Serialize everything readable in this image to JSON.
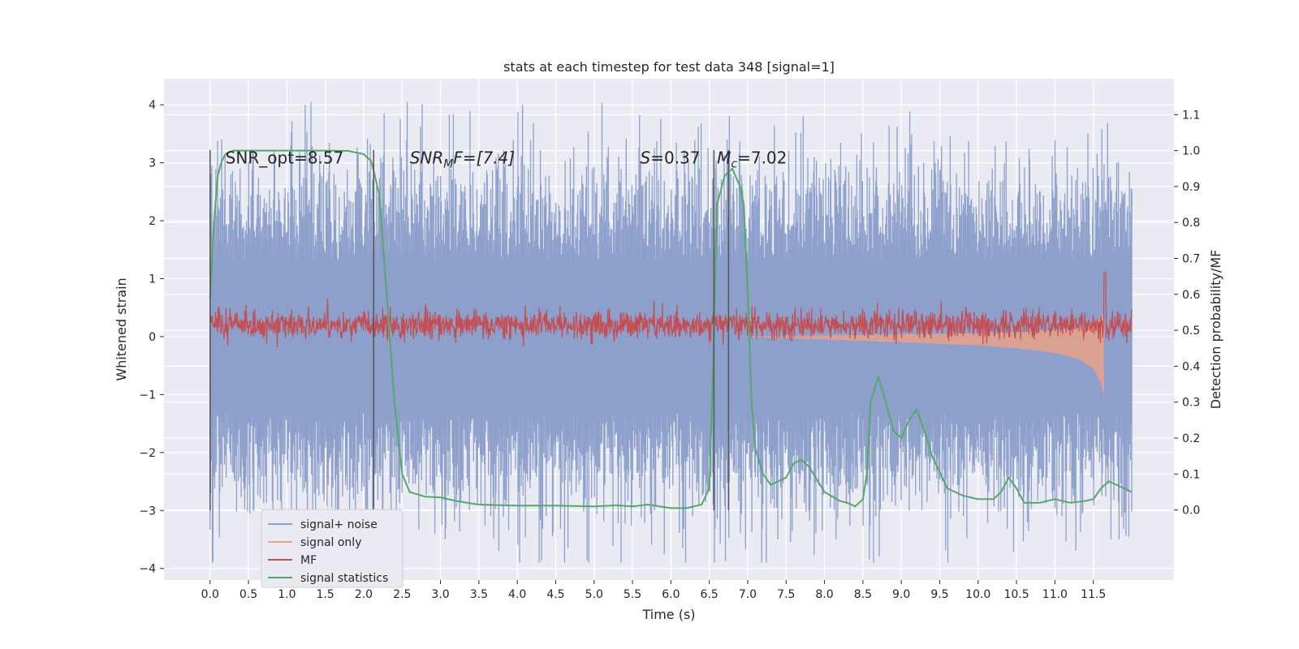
{
  "chart_data": {
    "type": "line",
    "title": "stats at each timestep for test data 348 [signal=1]",
    "xlabel": "Time (s)",
    "ylabel_left": "Whitened strain",
    "ylabel_right": "Detection probability/MF",
    "xlim": [
      -0.6,
      12.55
    ],
    "ylim_left": [
      -4.2,
      4.45
    ],
    "ylim_right": [
      -0.195,
      1.2
    ],
    "x_ticks": [
      "0.0",
      "0.5",
      "1.0",
      "1.5",
      "2.0",
      "2.5",
      "3.0",
      "3.5",
      "4.0",
      "4.5",
      "5.0",
      "5.5",
      "6.0",
      "6.5",
      "7.0",
      "7.5",
      "8.0",
      "8.5",
      "9.0",
      "9.5",
      "10.0",
      "10.5",
      "11.0",
      "11.5"
    ],
    "y_left_ticks": [
      "−4",
      "−3",
      "−2",
      "−1",
      "0",
      "1",
      "2",
      "3",
      "4"
    ],
    "y_right_ticks": [
      "0.0",
      "0.1",
      "0.2",
      "0.3",
      "0.4",
      "0.5",
      "0.6",
      "0.7",
      "0.8",
      "0.9",
      "1.0",
      "1.1"
    ],
    "grid": true,
    "legend": {
      "position": "lower-left",
      "entries": [
        {
          "label": "signal+ noise",
          "color": "#8da0cb"
        },
        {
          "label": "signal only",
          "color": "#e8a088"
        },
        {
          "label": "MF",
          "color": "#c44e52"
        },
        {
          "label": "signal statistics",
          "color": "#55a868"
        }
      ]
    },
    "annotations": [
      {
        "text": "SNR_opt=8.57",
        "x": 0.2,
        "y": 3.1
      },
      {
        "text": "SNR",
        "sub": "M",
        "suffix": "F=[7.4]",
        "italic": true,
        "x": 2.6,
        "y": 3.1
      },
      {
        "text": "S",
        "suffix": "=0.37",
        "italic": true,
        "x": 5.6,
        "y": 3.1
      },
      {
        "text": "M",
        "sub": "c",
        "suffix": "=7.02",
        "italic": true,
        "x": 6.6,
        "y": 3.1
      }
    ],
    "vlines": [
      {
        "x": 0.0,
        "ymin": -3.0,
        "ymax": 3.22
      },
      {
        "x": 2.13,
        "ymin": -3.0,
        "ymax": 3.22
      },
      {
        "x": 6.56,
        "ymin": -3.0,
        "ymax": 3.22
      },
      {
        "x": 6.75,
        "ymin": -3.0,
        "ymax": 3.22
      }
    ],
    "series": [
      {
        "name": "signal+ noise",
        "axis": "left",
        "color": "#8da0cb",
        "description_type": "noise_band",
        "x_range": [
          0.0,
          12.0
        ],
        "core_range": [
          -1.3,
          1.3
        ]
      },
      {
        "name": "signal only",
        "axis": "left",
        "color": "#e8a088",
        "description_type": "chirp",
        "envelope": {
          "x": [
            7.0,
            8.0,
            9.0,
            10.0,
            10.5,
            11.0,
            11.3,
            11.5,
            11.6,
            11.65
          ],
          "amp": [
            0.01,
            0.05,
            0.1,
            0.15,
            0.2,
            0.28,
            0.38,
            0.55,
            0.8,
            1.1
          ]
        }
      },
      {
        "name": "MF",
        "axis": "right",
        "color": "#c44e52",
        "description_type": "noise_band",
        "x_range": [
          0.0,
          12.0
        ],
        "center": 0.515,
        "spread": 0.02,
        "spike": {
          "x": 11.65,
          "y": 0.66
        }
      },
      {
        "name": "signal statistics",
        "axis": "right",
        "color": "#55a868",
        "x": [
          0.0,
          0.05,
          0.1,
          0.15,
          0.2,
          0.3,
          0.5,
          1.0,
          1.5,
          1.8,
          2.0,
          2.1,
          2.2,
          2.3,
          2.4,
          2.5,
          2.6,
          2.8,
          3.0,
          3.2,
          3.5,
          4.0,
          4.5,
          5.0,
          5.3,
          5.5,
          5.7,
          6.0,
          6.2,
          6.3,
          6.4,
          6.5,
          6.55,
          6.6,
          6.7,
          6.8,
          6.9,
          6.95,
          7.0,
          7.05,
          7.1,
          7.2,
          7.3,
          7.5,
          7.6,
          7.7,
          7.8,
          8.0,
          8.2,
          8.3,
          8.4,
          8.5,
          8.55,
          8.6,
          8.7,
          8.8,
          8.9,
          9.0,
          9.1,
          9.2,
          9.3,
          9.4,
          9.6,
          9.8,
          10.0,
          10.2,
          10.3,
          10.4,
          10.5,
          10.6,
          10.8,
          11.0,
          11.2,
          11.4,
          11.5,
          11.6,
          11.7,
          11.8,
          11.9,
          12.0
        ],
        "y": [
          0.59,
          0.8,
          0.93,
          0.97,
          0.99,
          1.0,
          1.0,
          1.0,
          1.0,
          0.999,
          0.99,
          0.97,
          0.88,
          0.6,
          0.3,
          0.1,
          0.05,
          0.037,
          0.035,
          0.025,
          0.015,
          0.012,
          0.012,
          0.01,
          0.013,
          0.01,
          0.015,
          0.005,
          0.005,
          0.01,
          0.015,
          0.06,
          0.4,
          0.85,
          0.93,
          0.95,
          0.9,
          0.85,
          0.6,
          0.3,
          0.17,
          0.1,
          0.07,
          0.09,
          0.13,
          0.14,
          0.12,
          0.05,
          0.025,
          0.02,
          0.01,
          0.03,
          0.1,
          0.3,
          0.37,
          0.3,
          0.22,
          0.2,
          0.25,
          0.28,
          0.22,
          0.15,
          0.06,
          0.04,
          0.03,
          0.03,
          0.05,
          0.09,
          0.06,
          0.02,
          0.02,
          0.03,
          0.02,
          0.025,
          0.03,
          0.06,
          0.08,
          0.07,
          0.06,
          0.05
        ]
      }
    ]
  }
}
